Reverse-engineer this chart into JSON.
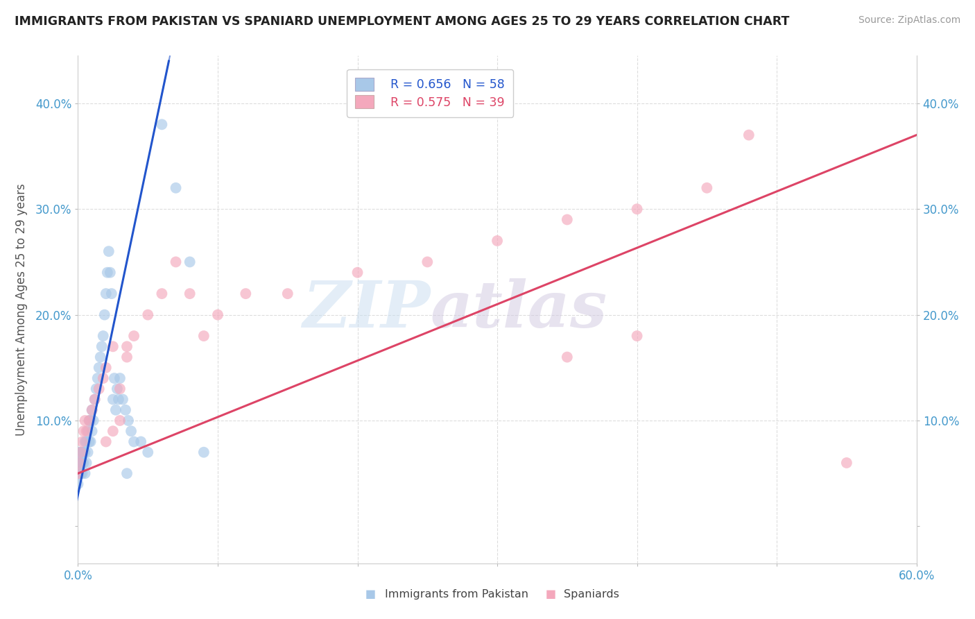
{
  "title": "IMMIGRANTS FROM PAKISTAN VS SPANIARD UNEMPLOYMENT AMONG AGES 25 TO 29 YEARS CORRELATION CHART",
  "source": "Source: ZipAtlas.com",
  "ylabel": "Unemployment Among Ages 25 to 29 years",
  "xlim": [
    0.0,
    0.6
  ],
  "ylim": [
    -0.035,
    0.445
  ],
  "xticks": [
    0.0,
    0.1,
    0.2,
    0.3,
    0.4,
    0.5,
    0.6
  ],
  "yticks": [
    0.0,
    0.1,
    0.2,
    0.3,
    0.4
  ],
  "legend_r1": "R = 0.656",
  "legend_n1": "N = 58",
  "legend_r2": "R = 0.575",
  "legend_n2": "N = 39",
  "color_pakistan": "#a8c8e8",
  "color_spaniard": "#f4a8bc",
  "color_line_pakistan": "#2255cc",
  "color_line_spaniard": "#dd4466",
  "pak_line_x0": 0.0,
  "pak_line_y0": 0.03,
  "pak_line_x1": 0.065,
  "pak_line_y1": 0.44,
  "spa_line_x0": 0.0,
  "spa_line_y0": 0.05,
  "spa_line_x1": 0.6,
  "spa_line_y1": 0.37,
  "pakistan_x": [
    0.0,
    0.0,
    0.001,
    0.001,
    0.001,
    0.002,
    0.002,
    0.002,
    0.003,
    0.003,
    0.003,
    0.004,
    0.004,
    0.005,
    0.005,
    0.005,
    0.006,
    0.006,
    0.007,
    0.007,
    0.008,
    0.008,
    0.009,
    0.009,
    0.01,
    0.01,
    0.011,
    0.012,
    0.013,
    0.014,
    0.015,
    0.016,
    0.017,
    0.018,
    0.019,
    0.02,
    0.021,
    0.022,
    0.023,
    0.024,
    0.025,
    0.026,
    0.027,
    0.028,
    0.029,
    0.03,
    0.032,
    0.034,
    0.036,
    0.038,
    0.04,
    0.045,
    0.05,
    0.06,
    0.07,
    0.08,
    0.09,
    0.035
  ],
  "pakistan_y": [
    0.04,
    0.06,
    0.05,
    0.06,
    0.07,
    0.05,
    0.06,
    0.07,
    0.05,
    0.06,
    0.07,
    0.06,
    0.07,
    0.05,
    0.07,
    0.08,
    0.06,
    0.08,
    0.07,
    0.09,
    0.08,
    0.1,
    0.08,
    0.1,
    0.09,
    0.11,
    0.1,
    0.12,
    0.13,
    0.14,
    0.15,
    0.16,
    0.17,
    0.18,
    0.2,
    0.22,
    0.24,
    0.26,
    0.24,
    0.22,
    0.12,
    0.14,
    0.11,
    0.13,
    0.12,
    0.14,
    0.12,
    0.11,
    0.1,
    0.09,
    0.08,
    0.08,
    0.07,
    0.38,
    0.32,
    0.25,
    0.07,
    0.05
  ],
  "spaniard_x": [
    0.0,
    0.001,
    0.002,
    0.003,
    0.004,
    0.005,
    0.006,
    0.008,
    0.01,
    0.012,
    0.015,
    0.018,
    0.02,
    0.025,
    0.03,
    0.035,
    0.04,
    0.05,
    0.06,
    0.07,
    0.08,
    0.09,
    0.1,
    0.12,
    0.15,
    0.2,
    0.25,
    0.3,
    0.35,
    0.4,
    0.45,
    0.48,
    0.02,
    0.025,
    0.03,
    0.035,
    0.35,
    0.4,
    0.55
  ],
  "spaniard_y": [
    0.05,
    0.06,
    0.07,
    0.08,
    0.09,
    0.1,
    0.09,
    0.1,
    0.11,
    0.12,
    0.13,
    0.14,
    0.15,
    0.17,
    0.13,
    0.16,
    0.18,
    0.2,
    0.22,
    0.25,
    0.22,
    0.18,
    0.2,
    0.22,
    0.22,
    0.24,
    0.25,
    0.27,
    0.29,
    0.3,
    0.32,
    0.37,
    0.08,
    0.09,
    0.1,
    0.17,
    0.16,
    0.18,
    0.06
  ]
}
